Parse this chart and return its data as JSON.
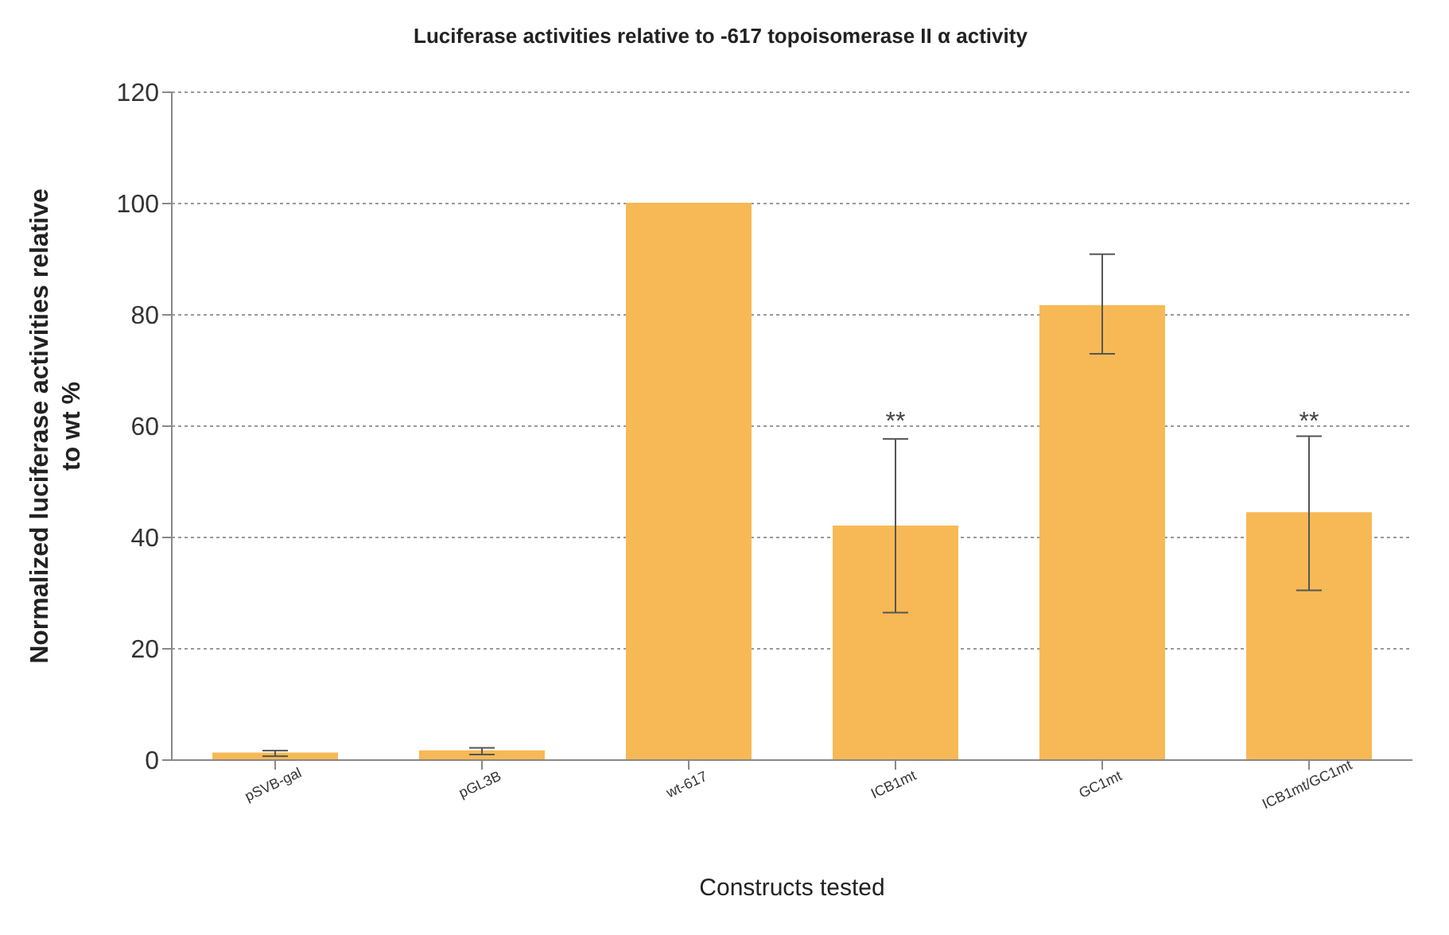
{
  "chart_data": {
    "type": "bar",
    "title": "Luciferase activities relative to -617 topoisomerase II α activity",
    "xlabel": "Constructs tested",
    "ylabel": "Normalized luciferase activities relative to wt %",
    "categories": [
      "pSVB-gal",
      "pGL3B",
      "wt-617",
      "ICB1mt",
      "GC1mt",
      "ICB1mt/GC1mt"
    ],
    "values": [
      1.2,
      1.6,
      100,
      42,
      81.6,
      44.4
    ],
    "errors": [
      0.5,
      0.6,
      null,
      [
        26.5,
        57.7
      ],
      [
        73,
        90.9
      ],
      [
        30.5,
        58.2
      ]
    ],
    "color": "#f7b955",
    "ylim": [
      0,
      120
    ],
    "yticks": [
      0,
      20,
      40,
      60,
      80,
      100,
      120
    ],
    "grid": "y",
    "annotations": [
      {
        "text": "**",
        "x": "ICB1mt",
        "y": 58
      },
      {
        "text": "**",
        "x": "ICB1mt/GC1mt",
        "y": 58
      }
    ]
  }
}
